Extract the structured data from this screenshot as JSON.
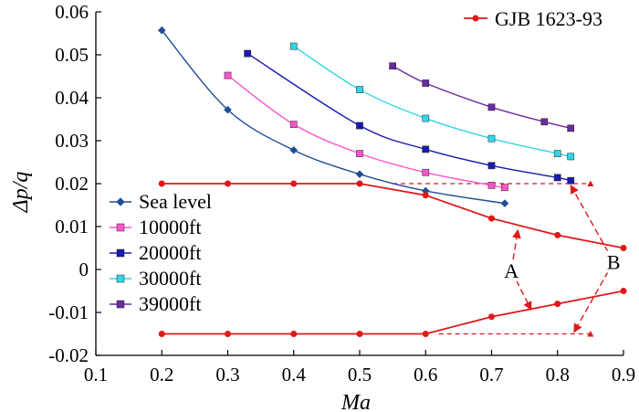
{
  "chart_data": {
    "type": "line",
    "title": "",
    "xlabel": "Ma",
    "ylabel": "Δp/q",
    "xlim": [
      0.1,
      0.9
    ],
    "ylim": [
      -0.02,
      0.06
    ],
    "xticks": [
      "0.1",
      "0.2",
      "0.3",
      "0.4",
      "0.5",
      "0.6",
      "0.7",
      "0.8",
      "0.9"
    ],
    "yticks": [
      "-0.02",
      "-0.01",
      "0",
      "0.01",
      "0.02",
      "0.03",
      "0.04",
      "0.05",
      "0.06"
    ],
    "grid": false,
    "legend_position": "left",
    "series": [
      {
        "name": "Sea level",
        "color": "#1f4e96",
        "marker": "diamond",
        "x": [
          0.2,
          0.3,
          0.4,
          0.5,
          0.6,
          0.72
        ],
        "y": [
          0.0557,
          0.0372,
          0.0278,
          0.0222,
          0.0183,
          0.0154
        ]
      },
      {
        "name": "10000ft",
        "color": "#ff55cc",
        "marker": "square",
        "x": [
          0.3,
          0.4,
          0.5,
          0.6,
          0.7,
          0.72
        ],
        "y": [
          0.0452,
          0.0338,
          0.027,
          0.0226,
          0.0196,
          0.0191
        ]
      },
      {
        "name": "20000ft",
        "color": "#1a1ab0",
        "marker": "square",
        "x": [
          0.33,
          0.5,
          0.6,
          0.7,
          0.8,
          0.82
        ],
        "y": [
          0.0503,
          0.0335,
          0.028,
          0.0242,
          0.0214,
          0.0207
        ]
      },
      {
        "name": "30000ft",
        "color": "#33d6e6",
        "marker": "square",
        "x": [
          0.4,
          0.5,
          0.6,
          0.7,
          0.8,
          0.82
        ],
        "y": [
          0.052,
          0.0419,
          0.0352,
          0.0305,
          0.027,
          0.0263
        ]
      },
      {
        "name": "39000ft",
        "color": "#6a2aa0",
        "marker": "square",
        "x": [
          0.55,
          0.6,
          0.7,
          0.78,
          0.82
        ],
        "y": [
          0.0474,
          0.0434,
          0.0378,
          0.0344,
          0.0329
        ]
      },
      {
        "name": "GJB 1623-93",
        "color": "#e01818",
        "marker": "circle",
        "x": [
          0.2,
          0.3,
          0.4,
          0.5,
          0.6,
          0.7,
          0.8,
          0.9
        ],
        "y": [
          0.02,
          0.02,
          0.02,
          0.02,
          0.0173,
          0.0119,
          0.008,
          0.005
        ]
      },
      {
        "name": "",
        "color": "#e01818",
        "marker": "circle",
        "x": [
          0.2,
          0.3,
          0.4,
          0.5,
          0.6,
          0.7,
          0.8,
          0.9
        ],
        "y": [
          -0.015,
          -0.015,
          -0.015,
          -0.015,
          -0.015,
          -0.011,
          -0.008,
          -0.005
        ]
      }
    ],
    "reference_lines": [
      {
        "style": "dashed",
        "color": "#e01818",
        "x": [
          0.55,
          0.85
        ],
        "y": [
          0.02,
          0.02
        ]
      },
      {
        "style": "dashed",
        "color": "#e01818",
        "x": [
          0.62,
          0.85
        ],
        "y": [
          -0.015,
          -0.015
        ]
      }
    ],
    "annotations": [
      {
        "text": "A",
        "x": 0.73,
        "y": -0.0002,
        "arrows_to": [
          {
            "x": 0.74,
            "y": 0.0092
          },
          {
            "x": 0.76,
            "y": -0.0094
          }
        ]
      },
      {
        "text": "B",
        "x": 0.885,
        "y": 0.0018,
        "arrows_to": [
          {
            "x": 0.82,
            "y": 0.0196
          },
          {
            "x": 0.825,
            "y": -0.0146
          }
        ]
      }
    ],
    "legend": [
      "Sea level",
      "10000ft",
      "20000ft",
      "30000ft",
      "39000ft"
    ],
    "legend_top": [
      "GJB 1623-93"
    ]
  }
}
